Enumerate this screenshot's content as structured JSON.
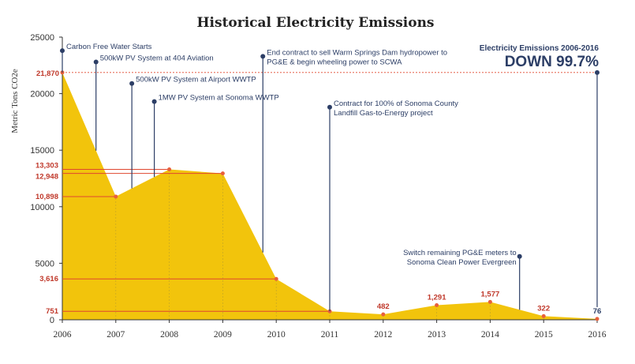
{
  "chart_data": {
    "type": "area",
    "title": "Historical Electricity Emissions",
    "ylabel": "Metric Tons CO2e",
    "xlabel": "",
    "ylim": [
      0,
      25000
    ],
    "yticks": [
      0,
      5000,
      10000,
      15000,
      20000,
      25000
    ],
    "categories": [
      "2006",
      "2007",
      "2008",
      "2009",
      "2010",
      "2011",
      "2012",
      "2013",
      "2014",
      "2015",
      "2016"
    ],
    "values": [
      21870,
      10898,
      13303,
      12948,
      3616,
      751,
      482,
      1291,
      1577,
      322,
      76
    ],
    "value_labels": [
      "21,870",
      "10,898",
      "13,303",
      "12,948",
      "3,616",
      "751",
      "482",
      "1,291",
      "1,577",
      "322",
      "76"
    ],
    "fill_color": "#f2c40c",
    "point_color": "#e8603c",
    "line_color": "#e0472f",
    "annotation_color": "#2c3e66",
    "annotations": [
      {
        "lines": [
          "Carbon Free Water Starts"
        ],
        "x": 2006,
        "y": 23800
      },
      {
        "lines": [
          "500kW PV System at 404 Aviation"
        ],
        "x": 2006.63,
        "y": 22800
      },
      {
        "lines": [
          "500kW PV System at Airport WWTP"
        ],
        "x": 2007.3,
        "y": 20900
      },
      {
        "lines": [
          "1MW PV System at Sonoma WWTP"
        ],
        "x": 2007.72,
        "y": 19300
      },
      {
        "lines": [
          "End contract to sell Warm Springs Dam hydropower to",
          "PG&E & begin wheeling power to SCWA"
        ],
        "x": 2009.75,
        "y": 23300
      },
      {
        "lines": [
          "Contract for 100% of Sonoma County",
          "Landfill Gas-to-Energy project"
        ],
        "x": 2011,
        "y": 18800
      },
      {
        "lines": [
          "Switch remaining PG&E meters to",
          "Sonoma Clean Power Evergreen"
        ],
        "x": 2014.55,
        "y": 5600
      }
    ],
    "callout": {
      "subtitle": "Electricity Emissions 2006-2016",
      "headline": "DOWN 99.7%",
      "x": 2016,
      "y": 21870
    }
  }
}
